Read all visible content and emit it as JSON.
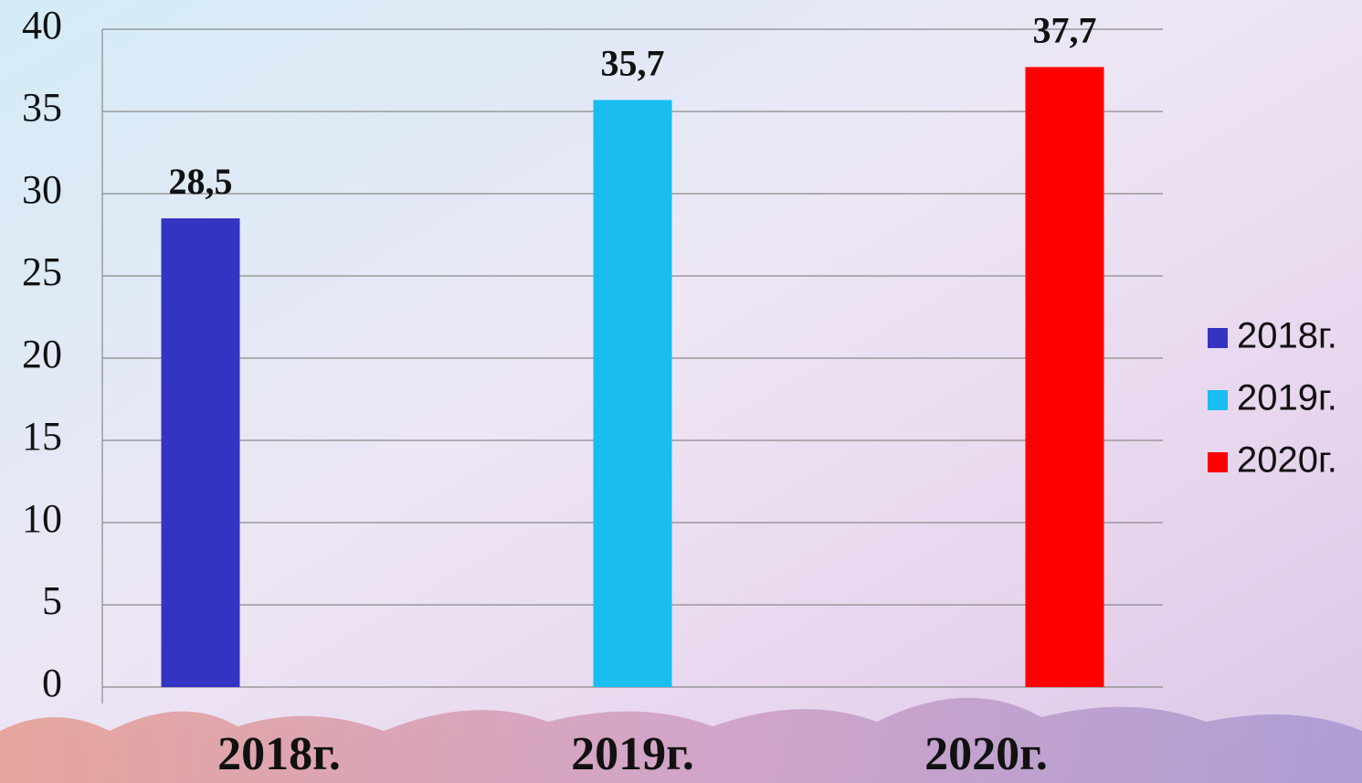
{
  "chart_data": {
    "type": "bar",
    "categories": [
      "2018г.",
      "2019г.",
      "2020г."
    ],
    "values": [
      28.5,
      35.7,
      37.7
    ],
    "value_labels": [
      "28,5",
      "35,7",
      "37,7"
    ],
    "colors": [
      "#3333c4",
      "#19bdf0",
      "#ff0000"
    ],
    "ylim": [
      0,
      40
    ],
    "yticks": [
      0,
      5,
      10,
      15,
      20,
      25,
      30,
      35,
      40
    ],
    "grid": true,
    "legend": "right"
  }
}
